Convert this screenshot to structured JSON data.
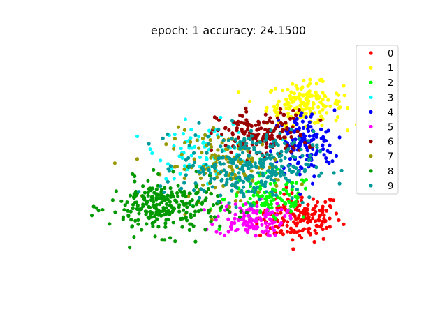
{
  "chart_data": {
    "type": "scatter",
    "title": "epoch:  1   accuracy: 24.1500",
    "xlabel": "",
    "ylabel": "",
    "axes_visible": false,
    "grid": false,
    "legend_position": "top-right",
    "xlim": [
      -10,
      10
    ],
    "ylim": [
      -7.5,
      7.5
    ],
    "series": [
      {
        "name": "0",
        "color": "#ff0000",
        "center": [
          4.1,
          -2.7
        ],
        "spread": [
          1.2,
          0.7
        ],
        "count": 170
      },
      {
        "name": "1",
        "color": "#ffff00",
        "center": [
          4.4,
          3.9
        ],
        "spread": [
          1.1,
          0.6
        ],
        "count": 170
      },
      {
        "name": "2",
        "color": "#00ff00",
        "center": [
          2.4,
          -1.6
        ],
        "spread": [
          1.3,
          0.7
        ],
        "count": 110
      },
      {
        "name": "3",
        "color": "#00ffff",
        "center": [
          -1.3,
          1.2
        ],
        "spread": [
          1.4,
          0.8
        ],
        "count": 90
      },
      {
        "name": "4",
        "color": "#0000ff",
        "center": [
          4.3,
          1.5
        ],
        "spread": [
          0.9,
          1.0
        ],
        "count": 150
      },
      {
        "name": "5",
        "color": "#ff00ff",
        "center": [
          1.2,
          -2.8
        ],
        "spread": [
          1.0,
          0.5
        ],
        "count": 120
      },
      {
        "name": "6",
        "color": "#990000",
        "center": [
          1.9,
          2.1
        ],
        "spread": [
          1.3,
          0.7
        ],
        "count": 170
      },
      {
        "name": "7",
        "color": "#999900",
        "center": [
          -0.2,
          0.3
        ],
        "spread": [
          1.7,
          1.0
        ],
        "count": 130
      },
      {
        "name": "8",
        "color": "#009900",
        "center": [
          -3.7,
          -2.1
        ],
        "spread": [
          1.6,
          0.8
        ],
        "count": 260
      },
      {
        "name": "9",
        "color": "#009999",
        "center": [
          1.1,
          0.3
        ],
        "spread": [
          1.9,
          1.0
        ],
        "count": 300
      }
    ]
  }
}
